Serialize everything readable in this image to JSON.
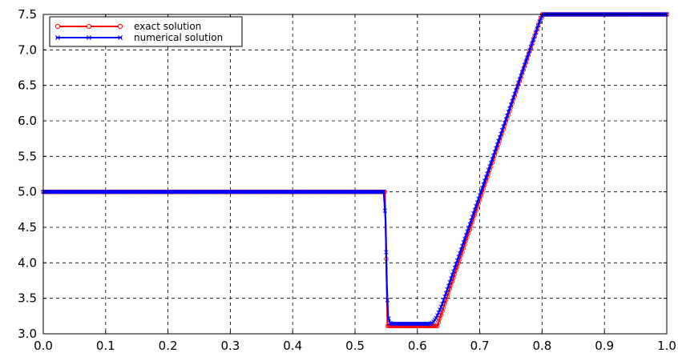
{
  "chart_data": {
    "type": "line",
    "title": "",
    "xlabel": "",
    "ylabel": "",
    "xlim": [
      0.0,
      1.0
    ],
    "ylim": [
      3.0,
      7.5
    ],
    "x_ticks": [
      "0.0",
      "0.1",
      "0.2",
      "0.3",
      "0.4",
      "0.5",
      "0.6",
      "0.7",
      "0.8",
      "0.9",
      "1.0"
    ],
    "y_ticks": [
      "3.0",
      "3.5",
      "4.0",
      "4.5",
      "5.0",
      "5.5",
      "6.0",
      "6.5",
      "7.0",
      "7.5"
    ],
    "grid": true,
    "legend_position": "top-left",
    "series": [
      {
        "name": "exact solution",
        "color": "#ff0000",
        "marker": "circle",
        "x": [
          0.0,
          0.548,
          0.552,
          0.632,
          0.8,
          1.0
        ],
        "y": [
          5.0,
          5.0,
          3.11,
          3.11,
          7.5,
          7.5
        ]
      },
      {
        "name": "numerical solution",
        "color": "#0000ff",
        "marker": "x",
        "x": [
          0.0,
          0.546,
          0.549,
          0.551,
          0.553,
          0.556,
          0.56,
          0.62,
          0.625,
          0.63,
          0.64,
          0.798,
          0.802,
          1.0
        ],
        "y": [
          5.0,
          5.0,
          4.6,
          3.7,
          3.25,
          3.15,
          3.14,
          3.14,
          3.16,
          3.22,
          3.42,
          7.45,
          7.5,
          7.5
        ]
      }
    ]
  }
}
